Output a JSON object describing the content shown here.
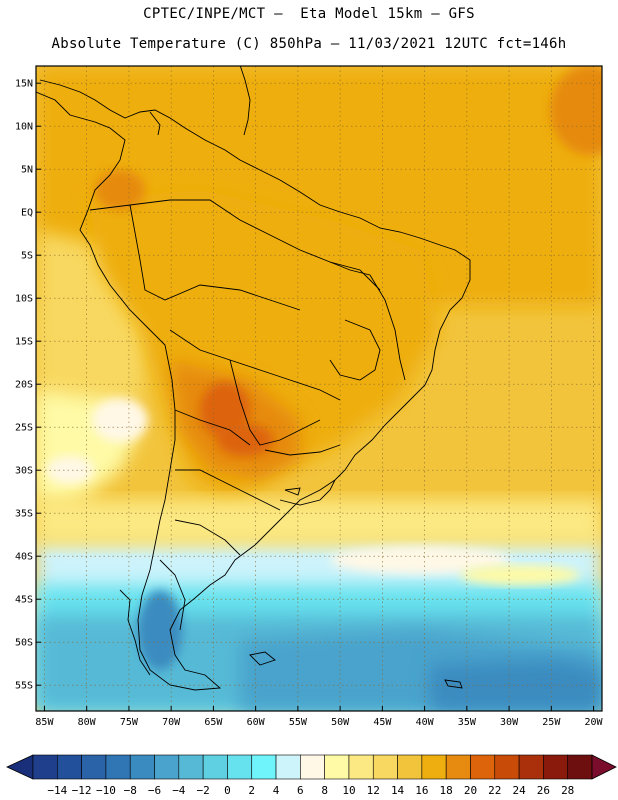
{
  "header": {
    "line1": "CPTEC/INPE/MCT –  Eta Model 15km – GFS",
    "line2": "Absolute Temperature (C) 850hPa – 11/03/2021 12UTC fct=146h"
  },
  "map": {
    "region": "South America",
    "lat_labels": [
      "15N",
      "10N",
      "5N",
      "EQ",
      "5S",
      "10S",
      "15S",
      "20S",
      "25S",
      "30S",
      "35S",
      "40S",
      "45S",
      "50S",
      "55S"
    ],
    "lon_labels": [
      "85W",
      "80W",
      "75W",
      "70W",
      "65W",
      "60W",
      "55W",
      "50W",
      "45W",
      "40W",
      "35W",
      "30W",
      "25W",
      "20W"
    ],
    "extent": {
      "lon_min": -86,
      "lon_max": -19,
      "lat_min": -58,
      "lat_max": 17
    }
  },
  "colorbar": {
    "ticks": [
      "-14",
      "-12",
      "-10",
      "-8",
      "-6",
      "-4",
      "-2",
      "0",
      "2",
      "4",
      "6",
      "8",
      "10",
      "12",
      "14",
      "16",
      "18",
      "20",
      "22",
      "24",
      "26",
      "28"
    ],
    "colors": [
      "#1f3f8c",
      "#23509a",
      "#2a63a8",
      "#3076b4",
      "#3a8bc0",
      "#4aa3cc",
      "#56bad6",
      "#5fd0e2",
      "#66e2ee",
      "#70f4fc",
      "#cdf3fb",
      "#fff8e6",
      "#fefaa6",
      "#fce983",
      "#f8d860",
      "#f2c43c",
      "#eeae10",
      "#e68a10",
      "#dd640a",
      "#c84c08",
      "#a9300a",
      "#8a1a0c",
      "#6e0f0f"
    ],
    "under_color": "#1a2f7a",
    "over_color": "#7a0d2c"
  }
}
